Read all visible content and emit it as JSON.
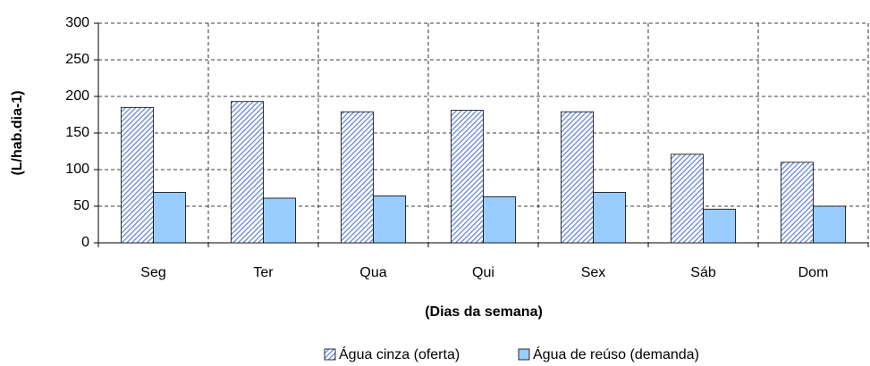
{
  "chart_data": {
    "type": "bar",
    "ylabel": "(L/hab.dia-1)",
    "xlabel": "(Dias da semana)",
    "categories": [
      "Seg",
      "Ter",
      "Qua",
      "Qui",
      "Sex",
      "Sáb",
      "Dom"
    ],
    "series": [
      {
        "name": "Água cinza (oferta)",
        "color": "#5b7fd6",
        "hatch": true,
        "values": [
          185,
          193,
          179,
          181,
          179,
          121,
          110
        ]
      },
      {
        "name": "Água de reúso (demanda)",
        "color": "#99ccff",
        "hatch": false,
        "values": [
          69,
          61,
          64,
          63,
          69,
          46,
          50
        ]
      }
    ],
    "ylim": [
      0,
      300
    ],
    "yticks": [
      0,
      50,
      100,
      150,
      200,
      250,
      300
    ],
    "grid": true
  }
}
